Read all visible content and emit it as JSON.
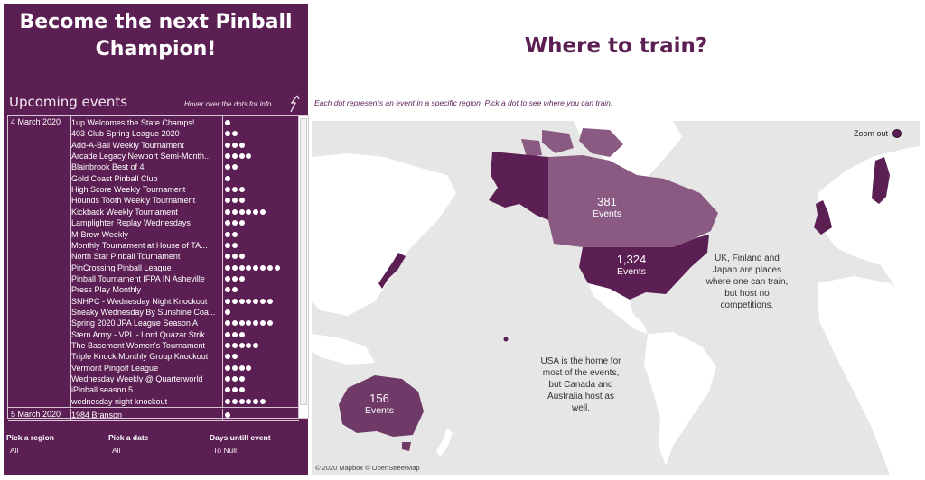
{
  "left_panel": {
    "title_line1": "Become the next Pinball",
    "title_line2": "Champion!",
    "upcoming_label": "Upcoming events",
    "hover_hint": "Hover over the dots for info",
    "date_groups": [
      {
        "date": "4 March 2020",
        "events": [
          {
            "name": "1up Welcomes the State Champs!",
            "dots": 1
          },
          {
            "name": "403 Club Spring League 2020",
            "dots": 2
          },
          {
            "name": "Add-A-Ball Weekly Tournament",
            "dots": 3
          },
          {
            "name": "Arcade Legacy Newport Semi-Month...",
            "dots": 4
          },
          {
            "name": "Blainbrook Best of 4",
            "dots": 2
          },
          {
            "name": "Gold Coast Pinball Club",
            "dots": 1
          },
          {
            "name": "High Score Weekly Tournament",
            "dots": 3
          },
          {
            "name": "Hounds Tooth Weekly Tournament",
            "dots": 3
          },
          {
            "name": "Kickback Weekly Tournament",
            "dots": 6
          },
          {
            "name": "Lamplighter Replay Wednesdays",
            "dots": 3
          },
          {
            "name": "M-Brew Weekly",
            "dots": 2
          },
          {
            "name": "Monthly Tournament at House of TA...",
            "dots": 2
          },
          {
            "name": "North Star Pinball Tournament",
            "dots": 3
          },
          {
            "name": "PinCrossing Pinball League",
            "dots": 8
          },
          {
            "name": "Pinball Tournament IFPA IN Asheville",
            "dots": 3
          },
          {
            "name": "Press Play Monthly",
            "dots": 2
          },
          {
            "name": "SNHPC - Wednesday Night Knockout",
            "dots": 7
          },
          {
            "name": "Sneaky Wednesday By Sunshine Coa...",
            "dots": 1
          },
          {
            "name": "Spring 2020 JPA League Season A",
            "dots": 7
          },
          {
            "name": "Stern Army - VPL -  Lord Quazar Strik...",
            "dots": 3
          },
          {
            "name": "The Basement Women's Tournament",
            "dots": 5
          },
          {
            "name": "Triple Knock Monthly Group Knockout",
            "dots": 2
          },
          {
            "name": "Vermont Pingolf League",
            "dots": 4
          },
          {
            "name": "Wednesday Weekly @ Quarterworld",
            "dots": 3
          },
          {
            "name": "iPinball season 5",
            "dots": 3
          },
          {
            "name": "wednesday night knockout",
            "dots": 6
          }
        ]
      },
      {
        "date": "5 March 2020",
        "events": [
          {
            "name": "1984 Branson",
            "dots": 1
          }
        ]
      }
    ],
    "filters": [
      {
        "label": "Pick a region",
        "value": "All"
      },
      {
        "label": "Pick a date",
        "value": "All"
      },
      {
        "label": "Days untill event",
        "value": "To Null"
      }
    ]
  },
  "right_panel": {
    "title": "Where to train?",
    "hint": "Each dot represents an event in a specific region. Pick a dot to see where you can train.",
    "zoom_out_label": "Zoom out",
    "regions": [
      {
        "key": "canada",
        "count": "381",
        "unit": "Events"
      },
      {
        "key": "usa",
        "count": "1,324",
        "unit": "Events"
      },
      {
        "key": "australia",
        "count": "156",
        "unit": "Events"
      }
    ],
    "notes": {
      "uk": "UK, Finland and Japan are places where one can train, but  host no competitions.",
      "usa": "USA is the home for most of the events, but Canada and Australia host as well."
    },
    "attribution": "© 2020 Mapbox © OpenStreetMap"
  },
  "colors": {
    "brand": "#5c1f53",
    "region_fill": "#6f3a68",
    "canada_fill": "#8a5a83",
    "land": "#ffffff",
    "water": "#e6e6e6"
  }
}
